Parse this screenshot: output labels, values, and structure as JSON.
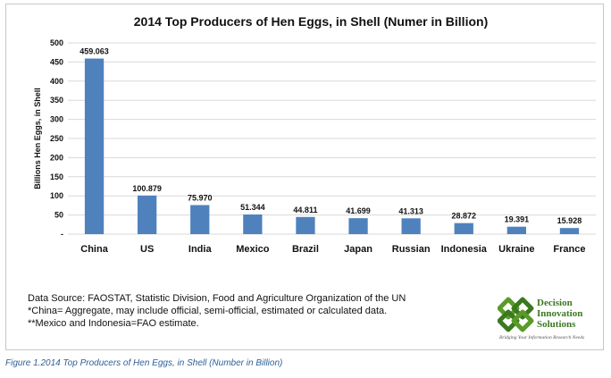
{
  "chart_data": {
    "type": "bar",
    "title": "2014 Top Producers of Hen Eggs, in Shell (Numer in Billion)",
    "xlabel": "",
    "ylabel": "Billions Hen Eggs, in Shell",
    "categories": [
      "China",
      "US",
      "India",
      "Mexico",
      "Brazil",
      "Japan",
      "Russian",
      "Indonesia",
      "Ukraine",
      "France"
    ],
    "values": [
      459.063,
      100.879,
      75.97,
      51.344,
      44.811,
      41.699,
      41.313,
      28.872,
      19.391,
      15.928
    ],
    "value_labels": [
      "459.063",
      "100.879",
      "75.970",
      "51.344",
      "44.811",
      "41.699",
      "41.313",
      "28.872",
      "19.391",
      "15.928"
    ],
    "ylim": [
      0,
      500
    ],
    "yticks": [
      0,
      50,
      100,
      150,
      200,
      250,
      300,
      350,
      400,
      450,
      500
    ],
    "ytick_labels": [
      "-",
      "50",
      "100",
      "150",
      "200",
      "250",
      "300",
      "350",
      "400",
      "450",
      "500"
    ],
    "bar_color": "#4f81bd",
    "grid": true,
    "legend": "none"
  },
  "notes": [
    "Data Source: FAOSTAT, Statistic Division, Food and Agriculture Organization of the UN",
    "*China= Aggregate, may include official, semi-official, estimated or calculated data.",
    "**Mexico and Indonesia=FAO estimate."
  ],
  "logo": {
    "lines": [
      "Decision",
      "Innovation",
      "Solutions"
    ],
    "tagline": "Bridging Your Information Research Needs",
    "color": "#3a7a1f"
  },
  "caption": "Figure 1.2014 Top Producers of Hen Eggs, in Shell (Number in Billion)"
}
